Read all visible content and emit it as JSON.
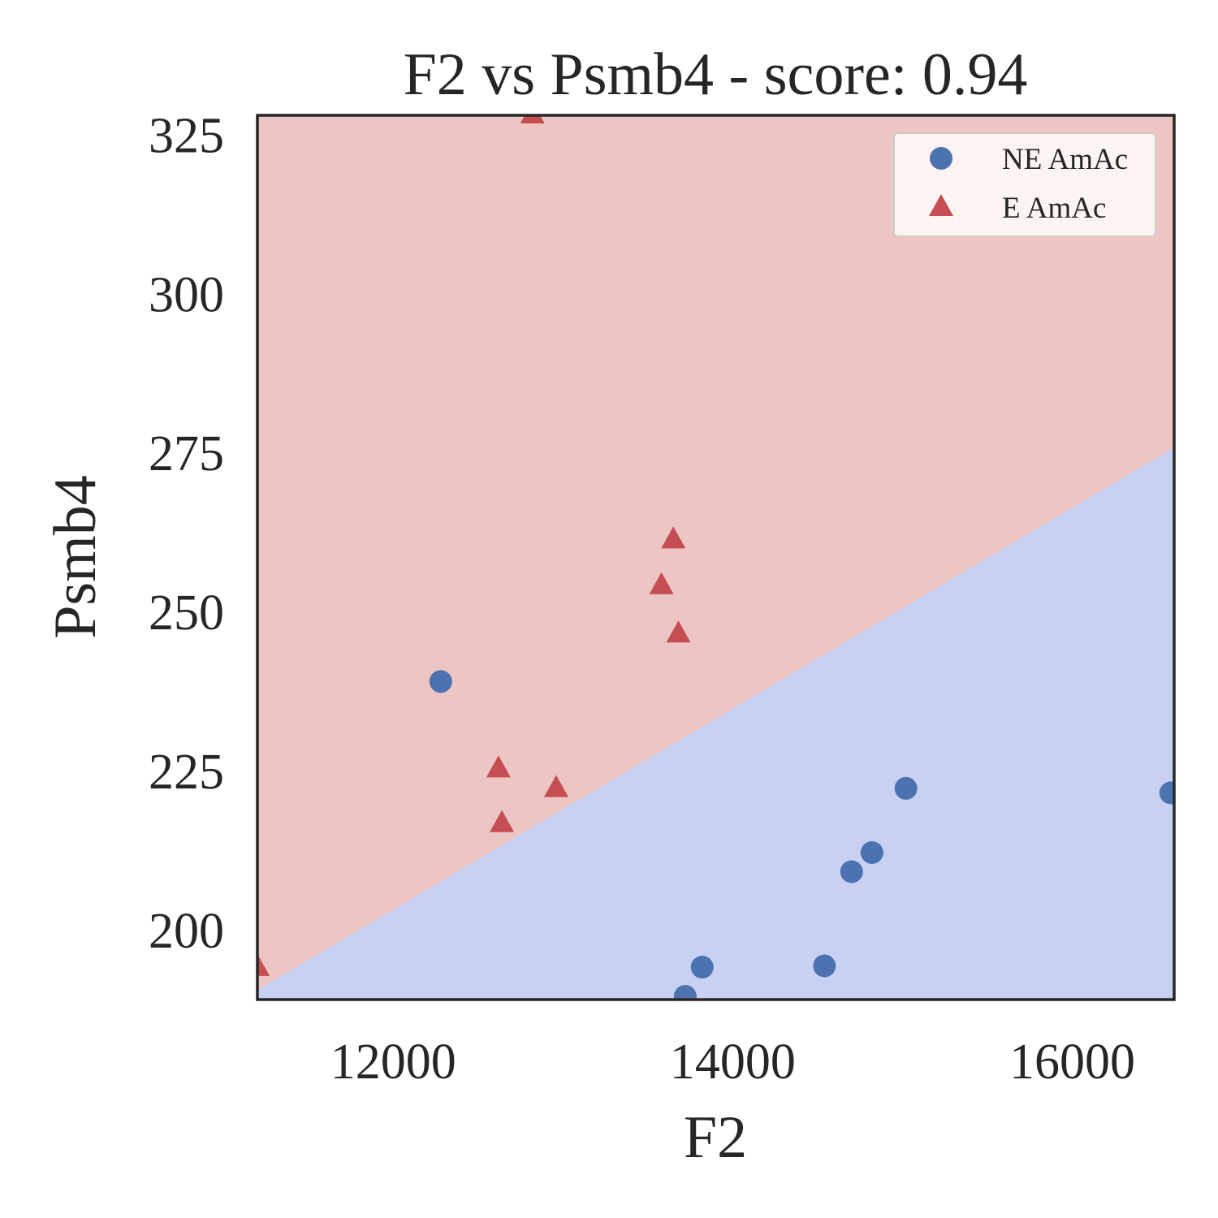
{
  "chart_data": {
    "type": "scatter",
    "title": "F2 vs Psmb4 - score: 0.94",
    "xlabel": "F2",
    "ylabel": "Psmb4",
    "xlim": [
      11200,
      16600
    ],
    "ylim": [
      189,
      328
    ],
    "xticks": [
      12000,
      14000,
      16000
    ],
    "yticks": [
      200,
      225,
      250,
      275,
      300,
      325
    ],
    "grid": false,
    "legend_position": "top-right",
    "decision_boundary": {
      "x": [
        11200,
        16600
      ],
      "y": [
        190.5,
        275.8
      ]
    },
    "regions": {
      "above": {
        "label": "E AmAc",
        "color": "#edc5c3"
      },
      "below": {
        "label": "NE AmAc",
        "color": "#c8d1f2"
      }
    },
    "series": [
      {
        "name": "NE AmAc",
        "marker": "circle",
        "color": "#4c72b0",
        "points": [
          [
            12280,
            239.0
          ],
          [
            13720,
            189.5
          ],
          [
            13820,
            194.1
          ],
          [
            14540,
            194.3
          ],
          [
            14700,
            209.1
          ],
          [
            14820,
            212.1
          ],
          [
            15020,
            222.2
          ],
          [
            16580,
            221.5
          ]
        ]
      },
      {
        "name": "E AmAc",
        "marker": "triangle",
        "color": "#c44e52",
        "points": [
          [
            11200,
            194.0
          ],
          [
            12620,
            225.2
          ],
          [
            12640,
            216.6
          ],
          [
            12820,
            328.0
          ],
          [
            12960,
            222.1
          ],
          [
            13580,
            254.0
          ],
          [
            13650,
            261.2
          ],
          [
            13680,
            246.4
          ]
        ]
      }
    ]
  }
}
